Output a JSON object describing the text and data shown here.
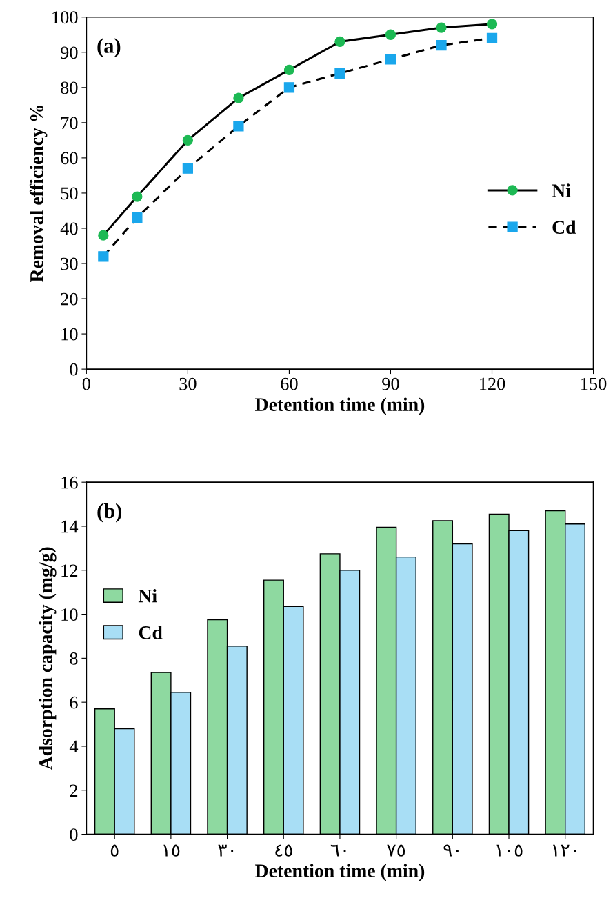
{
  "chart_data": [
    {
      "type": "line",
      "xlabel": "Detention time (min)",
      "ylabel": "Removal efficiency %",
      "annotations": [
        "(a)"
      ],
      "x": [
        5,
        15,
        30,
        45,
        60,
        75,
        90,
        105,
        120
      ],
      "series": [
        {
          "name": "Ni",
          "color": "#1db954",
          "values": [
            38,
            49,
            65,
            77,
            85,
            93,
            95,
            97,
            98
          ],
          "marker": "circle",
          "line_style": "solid"
        },
        {
          "name": "Cd",
          "color": "#1aa7ec",
          "values": [
            32,
            43,
            57,
            69,
            80,
            84,
            88,
            92,
            94
          ],
          "marker": "square",
          "line_style": "dashed"
        }
      ],
      "xlim": [
        0,
        150
      ],
      "xticks": [
        0,
        30,
        60,
        90,
        120,
        150
      ],
      "ylim": [
        0,
        100
      ],
      "yticks": [
        0,
        10,
        20,
        30,
        40,
        50,
        60,
        70,
        80,
        90,
        100
      ],
      "grid": false,
      "legend": "right"
    },
    {
      "type": "bar",
      "xlabel": "Detention time (min)",
      "ylabel": "Adsorption capacity (mg/g)",
      "annotations": [
        "(b)"
      ],
      "categories": [
        "٥",
        "١٥",
        "٣٠",
        "٤٥",
        "٦٠",
        "٧٥",
        "٩٠",
        "١٠٥",
        "١٢٠"
      ],
      "series": [
        {
          "name": "Ni",
          "color": "#8ed9a0",
          "values": [
            5.7,
            7.35,
            9.75,
            11.55,
            12.75,
            13.95,
            14.25,
            14.55,
            14.7
          ]
        },
        {
          "name": "Cd",
          "color": "#a8def5",
          "values": [
            4.8,
            6.45,
            8.55,
            10.35,
            12.0,
            12.6,
            13.2,
            13.8,
            14.1
          ]
        }
      ],
      "ylim": [
        0,
        16
      ],
      "yticks": [
        0,
        2,
        4,
        6,
        8,
        10,
        12,
        14,
        16
      ],
      "grid": false,
      "legend": "left"
    }
  ]
}
